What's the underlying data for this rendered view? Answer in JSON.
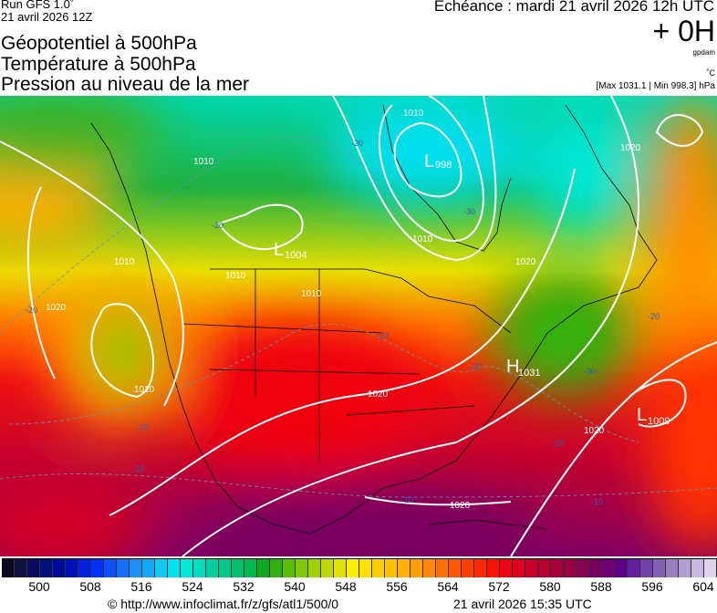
{
  "header": {
    "run": "Run GFS 1.0˚",
    "run_date": "21 avril 2026 12Z",
    "titles": [
      "Géopotentiel à 500hPa",
      "Température à 500hPa",
      "Pression au niveau de la mer"
    ],
    "echeance": "Echéance : mardi 21 avril 2026 12h UTC",
    "lead_time": "+ 0H",
    "unit_geopotential": "gpdam",
    "unit_temperature": "˚C",
    "pressure_range": "[Max 1031.1 | Min 998.3] hPa"
  },
  "map": {
    "pressure_systems": [
      {
        "type": "L",
        "value": "998"
      },
      {
        "type": "L",
        "value": "1004"
      },
      {
        "type": "H",
        "value": "1031"
      },
      {
        "type": "L",
        "value": "1009"
      }
    ],
    "isobar_labels": [
      "1010",
      "1010",
      "1010",
      "1010",
      "1010",
      "1020",
      "1020",
      "1020",
      "1020",
      "1020",
      "1020",
      "1010",
      "1010"
    ],
    "isotherm_labels": [
      "-20",
      "-30",
      "-20",
      "-20",
      "-20",
      "-30",
      "-20",
      "-20",
      "-10",
      "-10",
      "-10",
      "-20",
      "-20"
    ],
    "contour_color": "#ffffff",
    "isotherm_color": "#3060b0",
    "coastline_color": "#000000"
  },
  "colorbar": {
    "labels": [
      "500",
      "508",
      "516",
      "524",
      "532",
      "540",
      "548",
      "556",
      "564",
      "572",
      "580",
      "588",
      "596",
      "604"
    ],
    "colors": [
      "#0a0a1e",
      "#101040",
      "#0a0a60",
      "#00107a",
      "#000a98",
      "#0010b8",
      "#0020e0",
      "#0030f8",
      "#1050f8",
      "#1470f8",
      "#1890f8",
      "#10a8f8",
      "#10c8f0",
      "#00e0f0",
      "#00e8d8",
      "#00e0c0",
      "#00d0a0",
      "#00c888",
      "#00c070",
      "#00b850",
      "#10a820",
      "#30b010",
      "#58c000",
      "#80c800",
      "#a0d000",
      "#c0d800",
      "#e0e400",
      "#fff000",
      "#ffe000",
      "#ffd000",
      "#ffc000",
      "#ffb000",
      "#ff9c00",
      "#ff8800",
      "#ff7000",
      "#ff5800",
      "#ff4000",
      "#ff2800",
      "#ff1000",
      "#f00010",
      "#e00020",
      "#cc0028",
      "#b80030",
      "#a80038",
      "#980040",
      "#880050",
      "#780060",
      "#700078",
      "#600088",
      "#6020a0",
      "#7040a8",
      "#8060b0",
      "#9880c0",
      "#b0a0d0",
      "#c8b8e0",
      "#e0d4ec"
    ]
  },
  "footer": {
    "copyright": "© http://www.infoclimat.fr/z/gfs/atl1/500/0",
    "generated": "21 avril 2026 15:35 UTC"
  }
}
